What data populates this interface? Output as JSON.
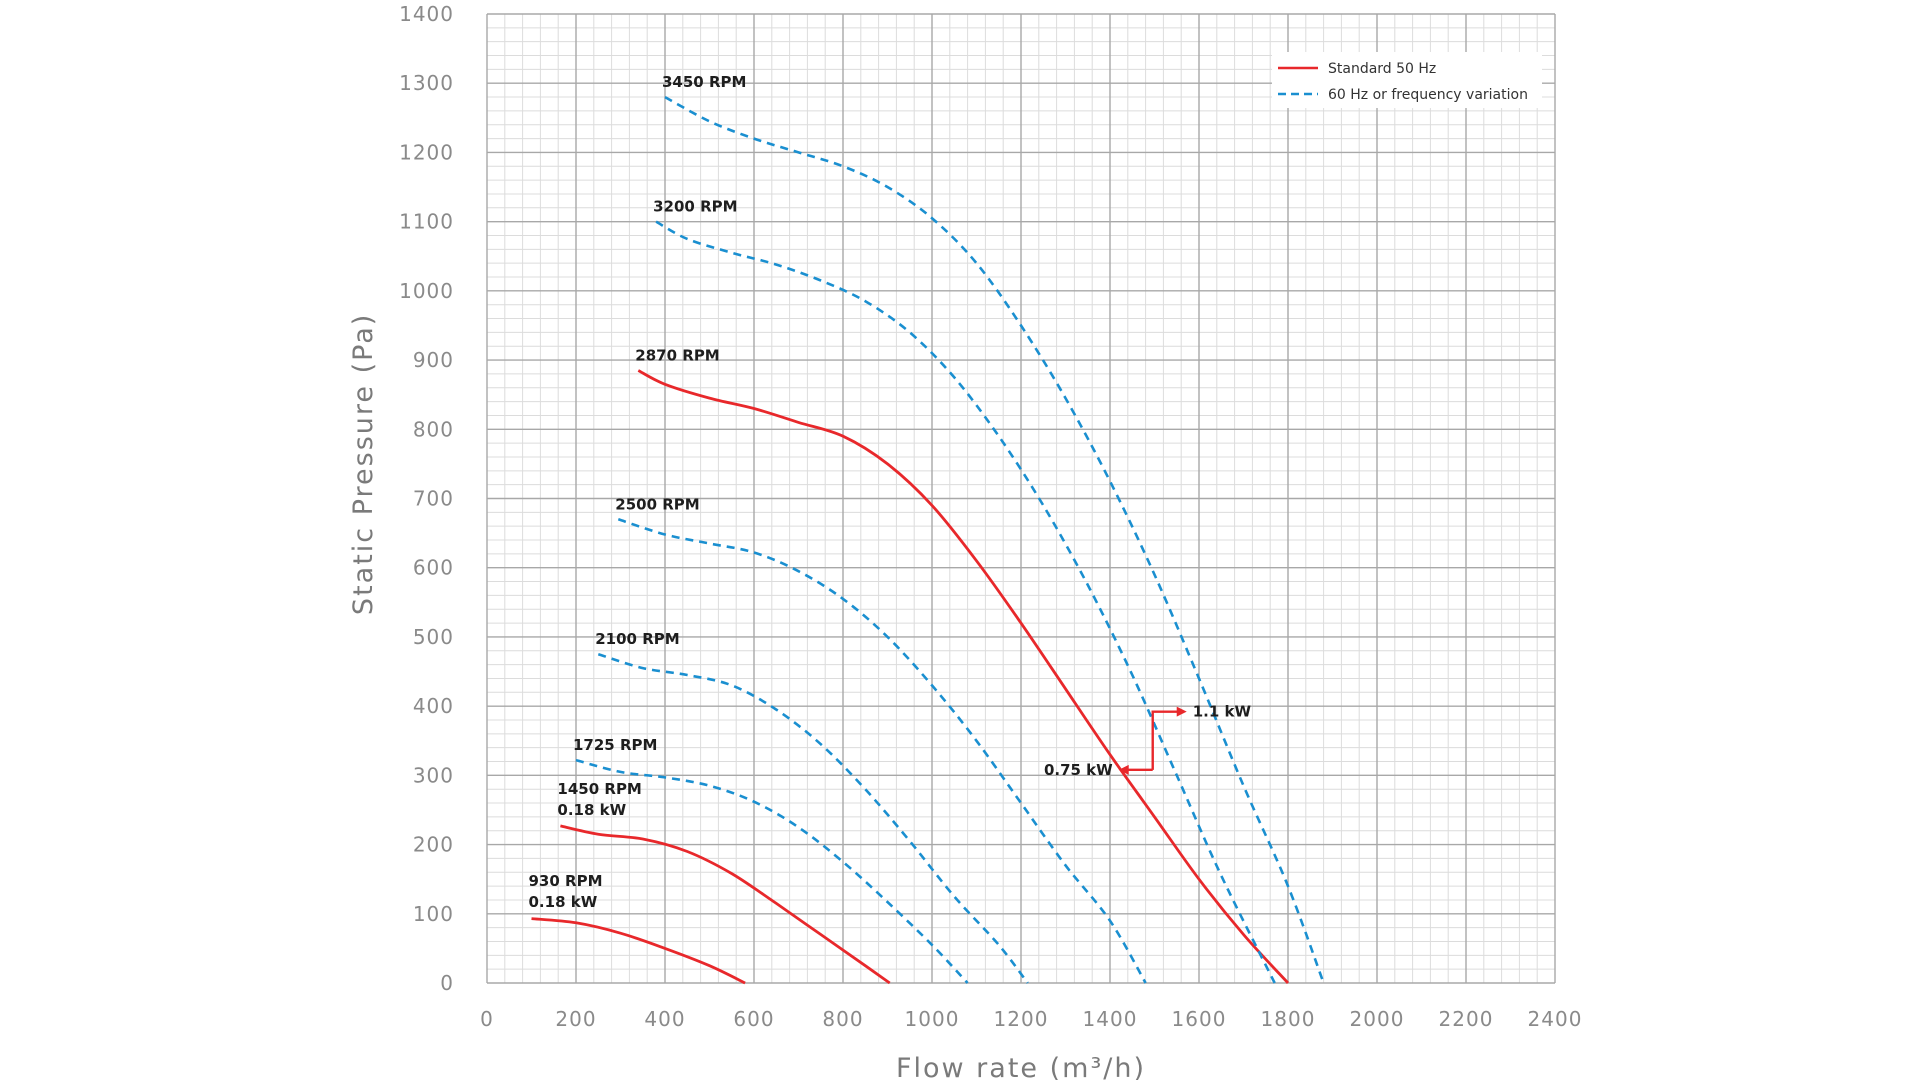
{
  "chart_data": {
    "type": "line",
    "xlabel": "Flow rate (m³/h)",
    "ylabel": "Static Pressure (Pa)",
    "xlim": [
      0,
      2400
    ],
    "ylim": [
      0,
      1400
    ],
    "x_ticks": [
      "0",
      "200",
      "400",
      "600",
      "800",
      "1000",
      "1200",
      "1400",
      "1600",
      "1800",
      "2000",
      "2200",
      "2400"
    ],
    "y_ticks": [
      "0",
      "100",
      "200",
      "300",
      "400",
      "500",
      "600",
      "700",
      "800",
      "900",
      "1000",
      "1100",
      "1200",
      "1300",
      "1400"
    ],
    "grid": true,
    "legend": {
      "position": "top-right",
      "items": [
        {
          "label": "Standard 50 Hz",
          "style": "solid",
          "color": "#e8282b"
        },
        {
          "label": "60 Hz or frequency variation",
          "style": "dashed",
          "color": "#1a8fd0"
        }
      ]
    },
    "series": [
      {
        "style": "solid",
        "color": "#e8282b",
        "labels": [
          "930 RPM",
          "0.18 kW"
        ],
        "label_at": [
          100,
          95
        ],
        "points": [
          [
            100,
            93
          ],
          [
            200,
            87
          ],
          [
            300,
            72
          ],
          [
            400,
            50
          ],
          [
            500,
            25
          ],
          [
            580,
            0
          ]
        ]
      },
      {
        "style": "solid",
        "color": "#e8282b",
        "labels": [
          "1450 RPM",
          "0.18 kW"
        ],
        "label_at": [
          165,
          228
        ],
        "points": [
          [
            165,
            227
          ],
          [
            250,
            215
          ],
          [
            350,
            208
          ],
          [
            450,
            190
          ],
          [
            550,
            158
          ],
          [
            650,
            115
          ],
          [
            750,
            70
          ],
          [
            850,
            25
          ],
          [
            905,
            0
          ]
        ]
      },
      {
        "style": "dashed",
        "color": "#1a8fd0",
        "labels": [
          "1725 RPM"
        ],
        "label_at": [
          200,
          322
        ],
        "points": [
          [
            200,
            322
          ],
          [
            300,
            305
          ],
          [
            400,
            297
          ],
          [
            500,
            285
          ],
          [
            600,
            262
          ],
          [
            700,
            225
          ],
          [
            800,
            175
          ],
          [
            900,
            117
          ],
          [
            1000,
            55
          ],
          [
            1080,
            0
          ]
        ]
      },
      {
        "style": "dashed",
        "color": "#1a8fd0",
        "labels": [
          "2100 RPM"
        ],
        "label_at": [
          250,
          475
        ],
        "points": [
          [
            250,
            475
          ],
          [
            350,
            455
          ],
          [
            450,
            445
          ],
          [
            550,
            430
          ],
          [
            650,
            395
          ],
          [
            750,
            345
          ],
          [
            850,
            280
          ],
          [
            950,
            205
          ],
          [
            1050,
            125
          ],
          [
            1150,
            55
          ],
          [
            1215,
            0
          ]
        ]
      },
      {
        "style": "dashed",
        "color": "#1a8fd0",
        "labels": [
          "2500 RPM"
        ],
        "label_at": [
          295,
          670
        ],
        "points": [
          [
            295,
            670
          ],
          [
            400,
            648
          ],
          [
            500,
            635
          ],
          [
            600,
            622
          ],
          [
            700,
            595
          ],
          [
            800,
            555
          ],
          [
            900,
            500
          ],
          [
            1000,
            430
          ],
          [
            1100,
            350
          ],
          [
            1200,
            260
          ],
          [
            1300,
            170
          ],
          [
            1400,
            90
          ],
          [
            1480,
            0
          ]
        ]
      },
      {
        "style": "solid",
        "color": "#e8282b",
        "labels": [
          "2870 RPM"
        ],
        "label_at": [
          340,
          885
        ],
        "points": [
          [
            340,
            885
          ],
          [
            400,
            865
          ],
          [
            500,
            845
          ],
          [
            600,
            830
          ],
          [
            700,
            810
          ],
          [
            800,
            790
          ],
          [
            900,
            750
          ],
          [
            1000,
            690
          ],
          [
            1100,
            610
          ],
          [
            1200,
            520
          ],
          [
            1300,
            425
          ],
          [
            1400,
            330
          ],
          [
            1500,
            240
          ],
          [
            1600,
            150
          ],
          [
            1700,
            70
          ],
          [
            1800,
            0
          ]
        ]
      },
      {
        "style": "dashed",
        "color": "#1a8fd0",
        "labels": [
          "3200 RPM"
        ],
        "label_at": [
          380,
          1100
        ],
        "points": [
          [
            380,
            1100
          ],
          [
            450,
            1075
          ],
          [
            550,
            1055
          ],
          [
            650,
            1038
          ],
          [
            750,
            1015
          ],
          [
            850,
            985
          ],
          [
            950,
            940
          ],
          [
            1050,
            875
          ],
          [
            1150,
            790
          ],
          [
            1250,
            690
          ],
          [
            1350,
            575
          ],
          [
            1450,
            445
          ],
          [
            1550,
            300
          ],
          [
            1650,
            155
          ],
          [
            1770,
            0
          ]
        ]
      },
      {
        "style": "dashed",
        "color": "#1a8fd0",
        "labels": [
          "3450 RPM"
        ],
        "label_at": [
          400,
          1280
        ],
        "points": [
          [
            400,
            1280
          ],
          [
            500,
            1245
          ],
          [
            600,
            1220
          ],
          [
            700,
            1200
          ],
          [
            800,
            1180
          ],
          [
            900,
            1150
          ],
          [
            1000,
            1105
          ],
          [
            1100,
            1040
          ],
          [
            1200,
            950
          ],
          [
            1300,
            845
          ],
          [
            1400,
            725
          ],
          [
            1500,
            590
          ],
          [
            1600,
            440
          ],
          [
            1700,
            285
          ],
          [
            1800,
            140
          ],
          [
            1880,
            0
          ]
        ]
      }
    ],
    "annotations": [
      {
        "text": "1.1 kW",
        "anchor": [
          1500,
          392
        ],
        "direction": "right"
      },
      {
        "text": "0.75 kW",
        "anchor": [
          1490,
          308
        ],
        "direction": "left"
      }
    ]
  }
}
